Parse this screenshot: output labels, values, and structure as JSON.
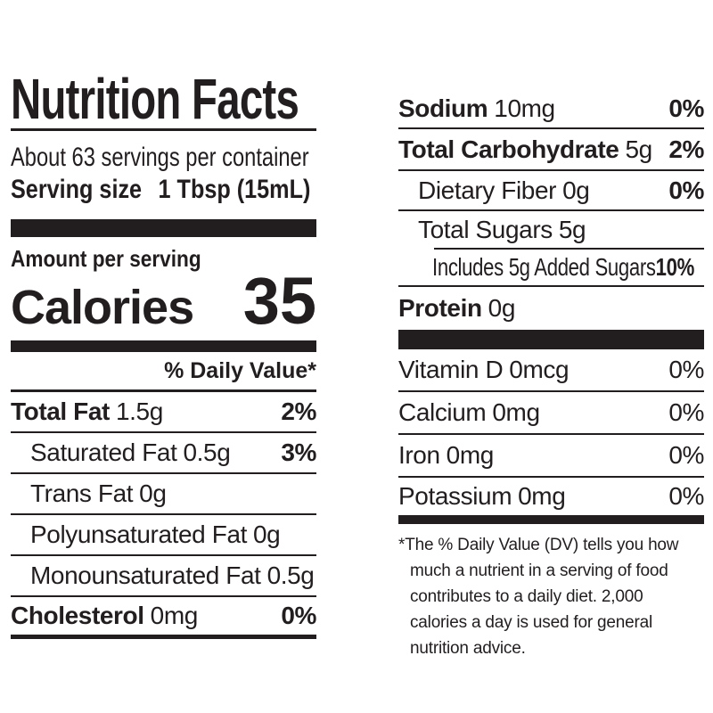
{
  "colors": {
    "ink": "#221e1f",
    "background": "#ffffff"
  },
  "label": {
    "title": "Nutrition Facts",
    "servings_per_container": "About 63 servings per container",
    "serving_size_label": "Serving size",
    "serving_size_value": "1 Tbsp (15mL)",
    "amount_per_serving": "Amount per serving",
    "calories_label": "Calories",
    "calories_value": "35",
    "daily_value_header": "% Daily Value*",
    "left_rows": [
      {
        "name": "Total Fat",
        "amount": "1.5g",
        "dv": "2%"
      },
      {
        "name": "Saturated Fat",
        "amount": "0.5g",
        "dv": "3%"
      },
      {
        "name": "Trans Fat",
        "amount": "0g",
        "dv": ""
      },
      {
        "name": "Polyunsaturated Fat",
        "amount": "0g",
        "dv": ""
      },
      {
        "name": "Monounsaturated Fat",
        "amount": "0.5g",
        "dv": ""
      },
      {
        "name": "Cholesterol",
        "amount": "0mg",
        "dv": "0%"
      }
    ],
    "right_rows": [
      {
        "name": "Sodium",
        "amount": "10mg",
        "dv": "0%"
      },
      {
        "name": "Total Carbohydrate",
        "amount": "5g",
        "dv": "2%"
      },
      {
        "name": "Dietary Fiber",
        "amount": "0g",
        "dv": "0%"
      },
      {
        "name": "Total Sugars",
        "amount": "5g",
        "dv": ""
      },
      {
        "name": "Includes 5g Added Sugars",
        "amount": "",
        "dv": "10%"
      },
      {
        "name": "Protein",
        "amount": "0g",
        "dv": ""
      }
    ],
    "vitamin_rows": [
      {
        "name": "Vitamin D",
        "amount": "0mcg",
        "dv": "0%"
      },
      {
        "name": "Calcium",
        "amount": "0mg",
        "dv": "0%"
      },
      {
        "name": "Iron",
        "amount": "0mg",
        "dv": "0%"
      },
      {
        "name": "Potassium",
        "amount": "0mg",
        "dv": "0%"
      }
    ],
    "footnote_lines": [
      "*The % Daily Value (DV) tells you how",
      "much a nutrient in a serving of food",
      "contributes to a daily diet. 2,000",
      "calories a day is used for general",
      "nutrition advice."
    ]
  }
}
